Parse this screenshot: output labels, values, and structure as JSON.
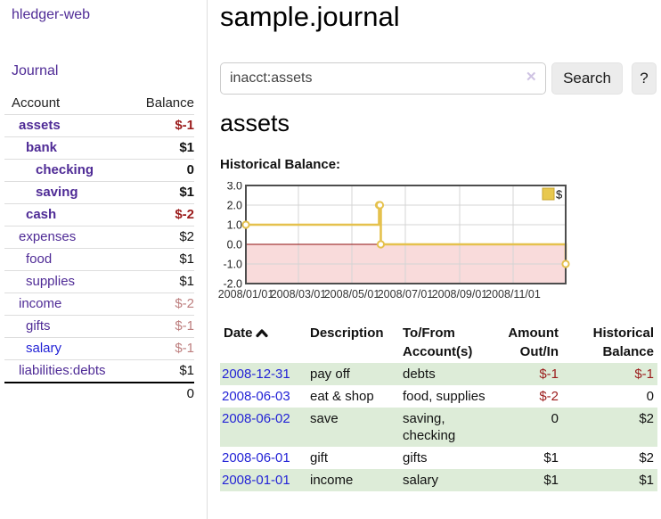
{
  "app": {
    "brand": "hledger-web"
  },
  "sidebar": {
    "journal_link": "Journal",
    "accounts_table": {
      "header": {
        "account": "Account",
        "balance": "Balance"
      },
      "rows": [
        {
          "name": "assets",
          "depth": 1,
          "bold": true,
          "balance": "$-1",
          "balance_style": "neg-strong",
          "link_color": "purple"
        },
        {
          "name": "bank",
          "depth": 2,
          "bold": true,
          "balance": "$1",
          "balance_style": "normal",
          "link_color": "purple"
        },
        {
          "name": "checking",
          "depth": 3,
          "bold": true,
          "balance": "0",
          "balance_style": "normal",
          "link_color": "purple"
        },
        {
          "name": "saving",
          "depth": 3,
          "bold": true,
          "balance": "$1",
          "balance_style": "normal",
          "link_color": "purple"
        },
        {
          "name": "cash",
          "depth": 2,
          "bold": true,
          "balance": "$-2",
          "balance_style": "neg-strong",
          "link_color": "purple"
        },
        {
          "name": "expenses",
          "depth": 1,
          "bold": false,
          "balance": "$2",
          "balance_style": "normal",
          "link_color": "purple"
        },
        {
          "name": "food",
          "depth": 2,
          "bold": false,
          "balance": "$1",
          "balance_style": "normal",
          "link_color": "purple"
        },
        {
          "name": "supplies",
          "depth": 2,
          "bold": false,
          "balance": "$1",
          "balance_style": "normal",
          "link_color": "purple"
        },
        {
          "name": "income",
          "depth": 1,
          "bold": false,
          "balance": "$-2",
          "balance_style": "neg-soft",
          "link_color": "purple"
        },
        {
          "name": "gifts",
          "depth": 2,
          "bold": false,
          "balance": "$-1",
          "balance_style": "neg-soft",
          "link_color": "purple"
        },
        {
          "name": "salary",
          "depth": 2,
          "bold": false,
          "balance": "$-1",
          "balance_style": "neg-soft",
          "link_color": "blue"
        },
        {
          "name": "liabilities:debts",
          "depth": 1,
          "bold": false,
          "balance": "$1",
          "balance_style": "normal",
          "link_color": "purple"
        }
      ],
      "total": "0"
    }
  },
  "header": {
    "title": "sample.journal"
  },
  "search": {
    "value": "inacct:assets",
    "clear_icon": "✕",
    "button_label": "Search",
    "help_label": "?"
  },
  "account_page": {
    "heading": "assets",
    "chart_label": "Historical Balance:"
  },
  "chart_data": {
    "type": "line",
    "title": "Historical Balance",
    "step": true,
    "xlim": [
      "2008-01-01",
      "2008-12-31"
    ],
    "ylim": [
      -2,
      3
    ],
    "grid": true,
    "legend": {
      "label": "$",
      "position": "top-right"
    },
    "x_ticks": [
      {
        "label": "2008/01/01",
        "date": "2008-01-01"
      },
      {
        "label": "2008/03/01",
        "date": "2008-03-01"
      },
      {
        "label": "2008/05/01",
        "date": "2008-05-01"
      },
      {
        "label": "2008/07/01",
        "date": "2008-07-01"
      },
      {
        "label": "2008/09/01",
        "date": "2008-09-01"
      },
      {
        "label": "2008/11/01",
        "date": "2008-11-01"
      }
    ],
    "y_ticks": [
      {
        "label": "3.0",
        "value": 3
      },
      {
        "label": "2.0",
        "value": 2
      },
      {
        "label": "1.0",
        "value": 1
      },
      {
        "label": "0.0",
        "value": 0
      },
      {
        "label": "-1.0",
        "value": -1
      },
      {
        "label": "-2.0",
        "value": -2
      }
    ],
    "series": [
      {
        "name": "$",
        "points": [
          {
            "date": "2008-01-01",
            "value": 1
          },
          {
            "date": "2008-06-01",
            "value": 2
          },
          {
            "date": "2008-06-02",
            "value": 2
          },
          {
            "date": "2008-06-03",
            "value": 0
          },
          {
            "date": "2008-12-31",
            "value": -1
          }
        ]
      }
    ],
    "colors": {
      "line": "#e5c14d",
      "marker_fill": "#ffffff",
      "legend_swatch": "#e8c84e",
      "negative_fill": "#f9dbdb",
      "zero_line": "#8f0e0e",
      "grid": "#d4d4d4",
      "border": "#4d4d4d"
    }
  },
  "register_table": {
    "headers": {
      "date": "Date",
      "description": "Description",
      "tofrom": "To/From Account(s)",
      "amount": "Amount Out/In",
      "balance": "Historical Balance"
    },
    "rows": [
      {
        "date": "2008-12-31",
        "description": "pay off",
        "accounts": "debts",
        "amount": "$-1",
        "amount_negative": true,
        "balance": "$-1",
        "balance_negative": true
      },
      {
        "date": "2008-06-03",
        "description": "eat & shop",
        "accounts": "food, supplies",
        "amount": "$-2",
        "amount_negative": true,
        "balance": "0",
        "balance_negative": false
      },
      {
        "date": "2008-06-02",
        "description": "save",
        "accounts": "saving, checking",
        "amount": "0",
        "amount_negative": false,
        "balance": "$2",
        "balance_negative": false
      },
      {
        "date": "2008-06-01",
        "description": "gift",
        "accounts": "gifts",
        "amount": "$1",
        "amount_negative": false,
        "balance": "$2",
        "balance_negative": false
      },
      {
        "date": "2008-01-01",
        "description": "income",
        "accounts": "salary",
        "amount": "$1",
        "amount_negative": false,
        "balance": "$1",
        "balance_negative": false
      }
    ]
  }
}
